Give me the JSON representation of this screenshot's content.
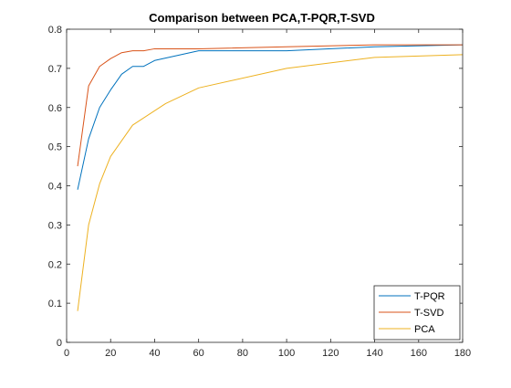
{
  "chart_data": {
    "type": "line",
    "title": "Comparison between PCA,T-PQR,T-SVD",
    "xlabel": "",
    "ylabel": "",
    "xlim": [
      0,
      180
    ],
    "ylim": [
      0,
      0.8
    ],
    "xticks": [
      0,
      20,
      40,
      60,
      80,
      100,
      120,
      140,
      160,
      180
    ],
    "yticks": [
      0,
      0.1,
      0.2,
      0.3,
      0.4,
      0.5,
      0.6,
      0.7,
      0.8
    ],
    "xtick_labels": [
      "0",
      "20",
      "40",
      "60",
      "80",
      "100",
      "120",
      "140",
      "160",
      "180"
    ],
    "ytick_labels": [
      "0",
      "0.1",
      "0.2",
      "0.3",
      "0.4",
      "0.5",
      "0.6",
      "0.7",
      "0.8"
    ],
    "grid": false,
    "legend_position": "bottom-right",
    "series": [
      {
        "name": "T-PQR",
        "color": "#0072BD",
        "x": [
          5,
          10,
          15,
          20,
          25,
          30,
          35,
          40,
          60,
          100,
          140,
          180
        ],
        "y": [
          0.39,
          0.52,
          0.6,
          0.645,
          0.685,
          0.705,
          0.705,
          0.72,
          0.745,
          0.745,
          0.755,
          0.76
        ]
      },
      {
        "name": "T-SVD",
        "color": "#D95319",
        "x": [
          5,
          10,
          15,
          20,
          25,
          30,
          35,
          40,
          60,
          100,
          140,
          180
        ],
        "y": [
          0.45,
          0.655,
          0.705,
          0.725,
          0.74,
          0.745,
          0.745,
          0.75,
          0.75,
          0.755,
          0.76,
          0.76
        ]
      },
      {
        "name": "PCA",
        "color": "#EDB120",
        "x": [
          5,
          10,
          15,
          20,
          30,
          45,
          60,
          100,
          140,
          180
        ],
        "y": [
          0.08,
          0.3,
          0.405,
          0.475,
          0.555,
          0.61,
          0.65,
          0.7,
          0.728,
          0.735
        ]
      }
    ]
  }
}
